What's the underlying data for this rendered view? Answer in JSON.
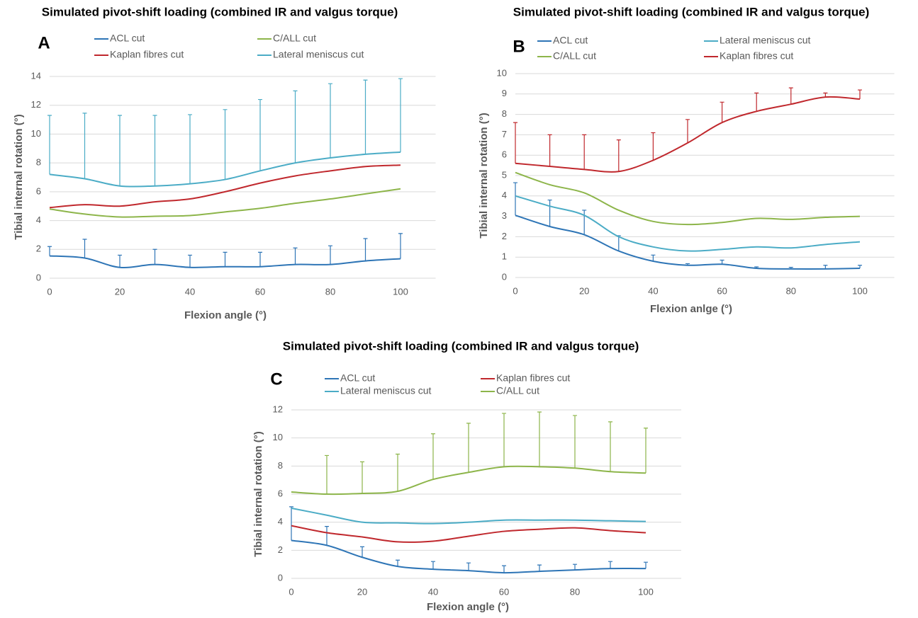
{
  "chart_data": [
    {
      "type": "line",
      "title": "Simulated pivot-shift loading (combined IR and valgus torque)",
      "annotation": "A",
      "x_label": "Flexion angle (°)",
      "y_label": "Tibial internal rotation (°)",
      "x": [
        0,
        10,
        20,
        30,
        40,
        50,
        60,
        70,
        80,
        90,
        100
      ],
      "xlim": [
        0,
        110
      ],
      "xticks": [
        0,
        20,
        40,
        60,
        80,
        100
      ],
      "ylim": [
        0,
        14
      ],
      "yticks": [
        0,
        2,
        4,
        6,
        8,
        10,
        12,
        14
      ],
      "grid": true,
      "series": [
        {
          "name": "ACL cut",
          "color": "#2e75b6",
          "values": [
            1.55,
            1.4,
            0.75,
            0.95,
            0.75,
            0.8,
            0.8,
            0.95,
            0.95,
            1.2,
            1.35
          ],
          "errors": [
            0.65,
            1.3,
            0.85,
            1.05,
            0.85,
            1.0,
            1.0,
            1.15,
            1.3,
            1.55,
            1.75
          ]
        },
        {
          "name": "C/ALL cut",
          "color": "#8db54a",
          "values": [
            4.8,
            4.45,
            4.25,
            4.3,
            4.35,
            4.6,
            4.85,
            5.2,
            5.5,
            5.85,
            6.2
          ]
        },
        {
          "name": "Kaplan fibres cut",
          "color": "#c0282d",
          "values": [
            4.9,
            5.1,
            5.0,
            5.3,
            5.5,
            6.0,
            6.6,
            7.1,
            7.45,
            7.75,
            7.85
          ]
        },
        {
          "name": "Lateral meniscus cut",
          "color": "#4bacc6",
          "values": [
            7.2,
            6.9,
            6.4,
            6.4,
            6.55,
            6.85,
            7.45,
            8.0,
            8.35,
            8.6,
            8.75
          ],
          "errors": [
            4.1,
            4.55,
            4.9,
            4.9,
            4.8,
            4.85,
            4.95,
            5.0,
            5.15,
            5.15,
            5.1
          ]
        }
      ]
    },
    {
      "type": "line",
      "title": "Simulated pivot-shift loading (combined IR and valgus torque)",
      "annotation": "B",
      "x_label": "Flexion anlge (°)",
      "y_label": "Tibial internal rotation (°)",
      "x": [
        0,
        10,
        20,
        30,
        40,
        50,
        60,
        70,
        80,
        90,
        100
      ],
      "xlim": [
        0,
        110
      ],
      "xticks": [
        0,
        20,
        40,
        60,
        80,
        100
      ],
      "ylim": [
        0,
        10
      ],
      "yticks": [
        0,
        1,
        2,
        3,
        4,
        5,
        6,
        7,
        8,
        9,
        10
      ],
      "grid": true,
      "series": [
        {
          "name": "ACL cut",
          "color": "#2e75b6",
          "values": [
            3.05,
            2.5,
            2.1,
            1.3,
            0.8,
            0.6,
            0.65,
            0.45,
            0.42,
            0.42,
            0.45
          ],
          "errors": [
            1.6,
            1.3,
            1.2,
            0.75,
            0.3,
            0.08,
            0.2,
            0.07,
            0.08,
            0.18,
            0.15
          ]
        },
        {
          "name": "Lateral meniscus cut",
          "color": "#4bacc6",
          "values": [
            4.0,
            3.5,
            3.05,
            2.0,
            1.5,
            1.3,
            1.38,
            1.5,
            1.45,
            1.62,
            1.75
          ]
        },
        {
          "name": "C/ALL cut",
          "color": "#8db54a",
          "values": [
            5.15,
            4.55,
            4.15,
            3.3,
            2.75,
            2.6,
            2.7,
            2.9,
            2.85,
            2.95,
            3.0
          ]
        },
        {
          "name": "Kaplan fibres cut",
          "color": "#c0282d",
          "values": [
            5.6,
            5.45,
            5.3,
            5.2,
            5.75,
            6.6,
            7.6,
            8.15,
            8.5,
            8.85,
            8.75
          ],
          "errors": [
            2.0,
            1.55,
            1.7,
            1.55,
            1.35,
            1.15,
            1.0,
            0.9,
            0.8,
            0.2,
            0.45
          ]
        }
      ]
    },
    {
      "type": "line",
      "title": "Simulated pivot-shift loading (combined IR and valgus torque)",
      "annotation": "C",
      "x_label": "Flexion angle (°)",
      "y_label": "Tibial internal rotation (°)",
      "x": [
        0,
        10,
        20,
        30,
        40,
        50,
        60,
        70,
        80,
        90,
        100
      ],
      "xlim": [
        0,
        110
      ],
      "xticks": [
        0,
        20,
        40,
        60,
        80,
        100
      ],
      "ylim": [
        0,
        12
      ],
      "yticks": [
        0,
        2,
        4,
        6,
        8,
        10,
        12
      ],
      "grid": true,
      "series": [
        {
          "name": "ACL cut",
          "color": "#2e75b6",
          "values": [
            2.7,
            2.35,
            1.5,
            0.85,
            0.65,
            0.55,
            0.4,
            0.5,
            0.6,
            0.7,
            0.7
          ],
          "errors": [
            2.4,
            1.35,
            0.75,
            0.45,
            0.55,
            0.55,
            0.5,
            0.45,
            0.4,
            0.5,
            0.45
          ]
        },
        {
          "name": "Kaplan fibres cut",
          "color": "#c0282d",
          "values": [
            3.75,
            3.25,
            2.95,
            2.6,
            2.65,
            3.0,
            3.35,
            3.5,
            3.6,
            3.4,
            3.25
          ]
        },
        {
          "name": "Lateral meniscus cut",
          "color": "#4bacc6",
          "values": [
            5.0,
            4.5,
            4.0,
            3.95,
            3.9,
            4.0,
            4.15,
            4.15,
            4.15,
            4.1,
            4.05
          ]
        },
        {
          "name": "C/ALL cut",
          "color": "#8db54a",
          "values": [
            6.15,
            6.0,
            6.05,
            6.2,
            7.05,
            7.55,
            7.95,
            7.95,
            7.85,
            7.6,
            7.5
          ],
          "errors": [
            null,
            2.75,
            2.25,
            2.65,
            3.25,
            3.5,
            3.8,
            3.9,
            3.75,
            3.55,
            3.2
          ]
        }
      ]
    }
  ]
}
